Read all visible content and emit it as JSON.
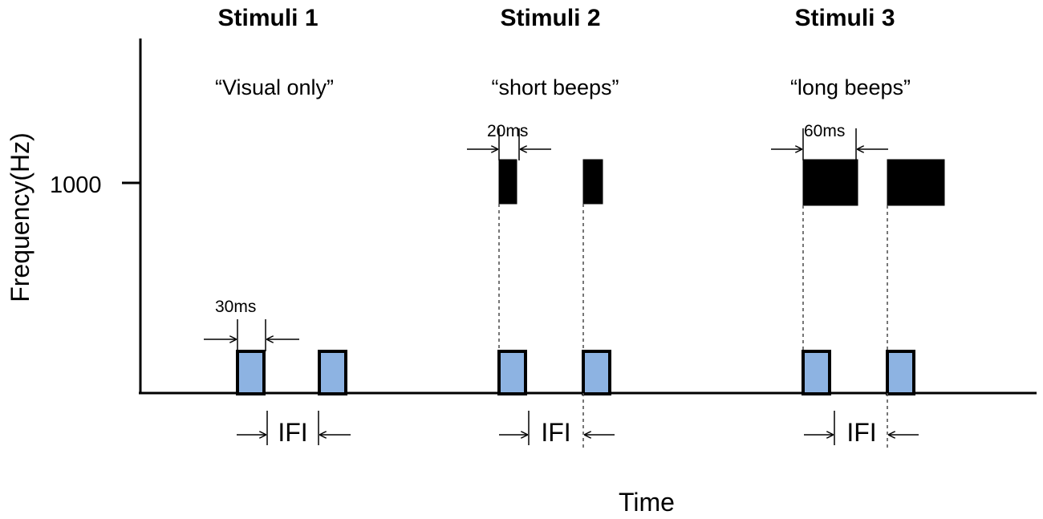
{
  "axes": {
    "ylabel": "Frequency(Hz)",
    "xlabel": "Time",
    "y_tick": "1000"
  },
  "stimuli": [
    {
      "title": "Stimuli 1",
      "subtitle": "“Visual only”",
      "duration_label": "30ms",
      "ifi_label": "IFI"
    },
    {
      "title": "Stimuli 2",
      "subtitle": "“short beeps”",
      "duration_label": "20ms",
      "ifi_label": "IFI"
    },
    {
      "title": "Stimuli 3",
      "subtitle": "“long beeps”",
      "duration_label": "60ms",
      "ifi_label": "IFI"
    }
  ],
  "colors": {
    "visual_flash": "#8db3e2",
    "beep": "#000000",
    "axis": "#000000"
  }
}
